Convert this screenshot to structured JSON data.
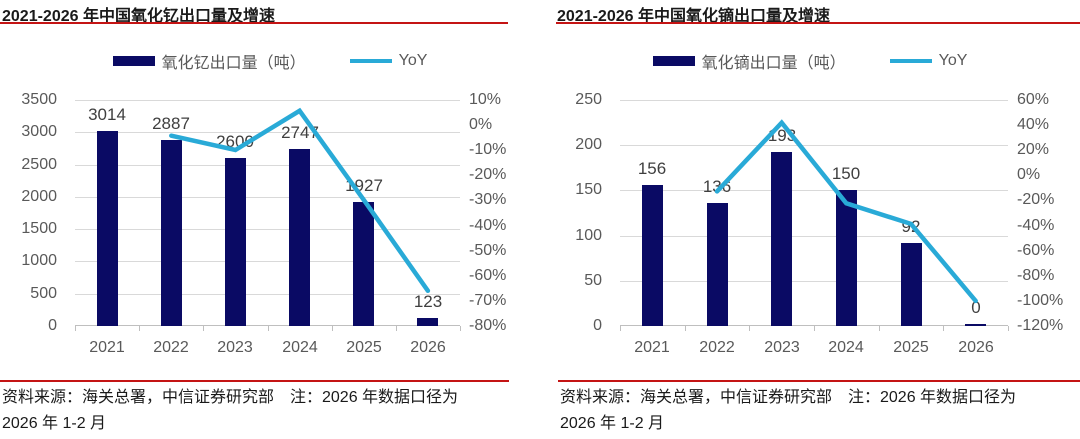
{
  "panels": [
    {
      "title": "2021-2026 年中国氧化钇出口量及增速",
      "legend": {
        "bar_label": "氧化钇出口量（吨）",
        "line_label": "YoY"
      },
      "source_line1": "资料来源：海关总署，中信证券研究部　注：2026 年数据口径为",
      "source_line2": "2026 年 1-2 月"
    },
    {
      "title": "2021-2026 年中国氧化镝出口量及增速",
      "legend": {
        "bar_label": "氧化镝出口量（吨）",
        "line_label": "YoY"
      },
      "source_line1": "资料来源：海关总署，中信证券研究部　注：2026 年数据口径为",
      "source_line2": "2026 年 1-2 月"
    }
  ],
  "chart_data": [
    {
      "type": "bar",
      "title": "2021-2026 年中国氧化钇出口量及增速",
      "categories": [
        "2021",
        "2022",
        "2023",
        "2024",
        "2025",
        "2026"
      ],
      "series": [
        {
          "name": "氧化钇出口量（吨）",
          "type": "bar",
          "axis": "left",
          "values": [
            3014,
            2887,
            2600,
            2747,
            1927,
            123
          ]
        },
        {
          "name": "YoY",
          "type": "line",
          "axis": "right",
          "values": [
            null,
            -4.2,
            -9.9,
            5.7,
            -29.8,
            -66
          ]
        }
      ],
      "left_axis": {
        "min": 0,
        "max": 3500,
        "step": 500,
        "ticks": [
          "3500",
          "3000",
          "2500",
          "2000",
          "1500",
          "1000",
          "500",
          "0"
        ]
      },
      "right_axis": {
        "min": -80,
        "max": 10,
        "step": 10,
        "ticks": [
          "10%",
          "0%",
          "-10%",
          "-20%",
          "-30%",
          "-40%",
          "-50%",
          "-60%",
          "-70%",
          "-80%"
        ]
      },
      "grid": true,
      "legend_position": "top",
      "xlabel": "",
      "ylabel": ""
    },
    {
      "type": "bar",
      "title": "2021-2026 年中国氧化镝出口量及增速",
      "categories": [
        "2021",
        "2022",
        "2023",
        "2024",
        "2025",
        "2026"
      ],
      "series": [
        {
          "name": "氧化镝出口量（吨）",
          "type": "bar",
          "axis": "left",
          "values": [
            156,
            136,
            193,
            150,
            92,
            0
          ]
        },
        {
          "name": "YoY",
          "type": "line",
          "axis": "right",
          "values": [
            null,
            -12.8,
            41.9,
            -22.3,
            -38.7,
            -100
          ]
        }
      ],
      "left_axis": {
        "min": 0,
        "max": 250,
        "step": 50,
        "ticks": [
          "250",
          "200",
          "150",
          "100",
          "50",
          "0"
        ]
      },
      "right_axis": {
        "min": -120,
        "max": 60,
        "step": 20,
        "ticks": [
          "60%",
          "40%",
          "20%",
          "0%",
          "-20%",
          "-40%",
          "-60%",
          "-80%",
          "-100%",
          "-120%"
        ]
      },
      "grid": true,
      "legend_position": "top",
      "xlabel": "",
      "ylabel": ""
    }
  ],
  "colors": {
    "bar": "#0a0a64",
    "line": "#29aad7",
    "grid": "#d9d9d9",
    "baseline": "#bfbfbf",
    "axis_text": "#595959",
    "value_text": "#3f3f3f",
    "accent_red": "#c41414",
    "title_text": "#1a1a1a"
  }
}
